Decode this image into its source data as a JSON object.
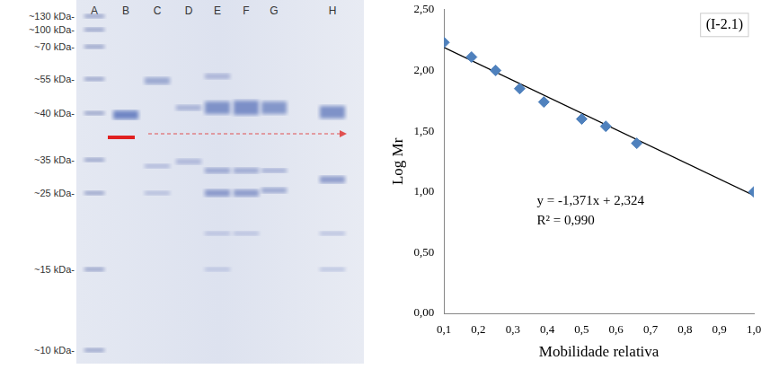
{
  "chart_data": {
    "type": "scatter",
    "x_label": "Mobilidade relativa",
    "y_label": "Log Mr",
    "annotations": [
      "(I-2.1)",
      "y = -1,371x + 2,324",
      "R² = 0,990"
    ],
    "series": [
      {
        "type": "scatter",
        "color": "#4f81bd",
        "marker": "diamond",
        "x": [
          0.1,
          0.18,
          0.25,
          0.32,
          0.39,
          0.5,
          0.57,
          0.66,
          1.0
        ],
        "values": [
          2.23,
          2.11,
          2.0,
          1.85,
          1.74,
          1.6,
          1.54,
          1.4,
          1.0
        ]
      },
      {
        "type": "line",
        "color": "#000000",
        "line_style": "solid",
        "x": [
          0.1,
          1.0
        ],
        "values": [
          2.19,
          0.97
        ]
      }
    ],
    "xlim": [
      0.1,
      1.0
    ],
    "xticks": [
      {
        "value": 0.1,
        "label": "0,1"
      },
      {
        "value": 0.2,
        "label": "0,2"
      },
      {
        "value": 0.3,
        "label": "0,3"
      },
      {
        "value": 0.4,
        "label": "0,4"
      },
      {
        "value": 0.5,
        "label": "0,5"
      },
      {
        "value": 0.6,
        "label": "0,6"
      },
      {
        "value": 0.7,
        "label": "0,7"
      },
      {
        "value": 0.8,
        "label": "0,8"
      },
      {
        "value": 0.9,
        "label": "0,9"
      },
      {
        "value": 1.0,
        "label": "1,0"
      }
    ],
    "ylim": [
      0,
      2.5
    ],
    "yticks": [
      {
        "value": 0,
        "label": "0,00"
      },
      {
        "value": 0.5,
        "label": "0,50"
      },
      {
        "value": 1.0,
        "label": "1,00"
      },
      {
        "value": 1.5,
        "label": "1,50"
      },
      {
        "value": 2.0,
        "label": "2,00"
      },
      {
        "value": 2.5,
        "label": "2,50"
      }
    ],
    "grid": false
  },
  "gel": {
    "lane_labels": [
      "A",
      "B",
      "C",
      "D",
      "E",
      "F",
      "G",
      "H"
    ],
    "marker_labels": [
      "~130 kDa-",
      "~100 kDa-",
      "~70 kDa-",
      "~55 kDa-",
      "~40 kDa-",
      "~35 kDa-",
      "~25 kDa-",
      "~15 kDa-",
      "~10 kDa-"
    ]
  }
}
